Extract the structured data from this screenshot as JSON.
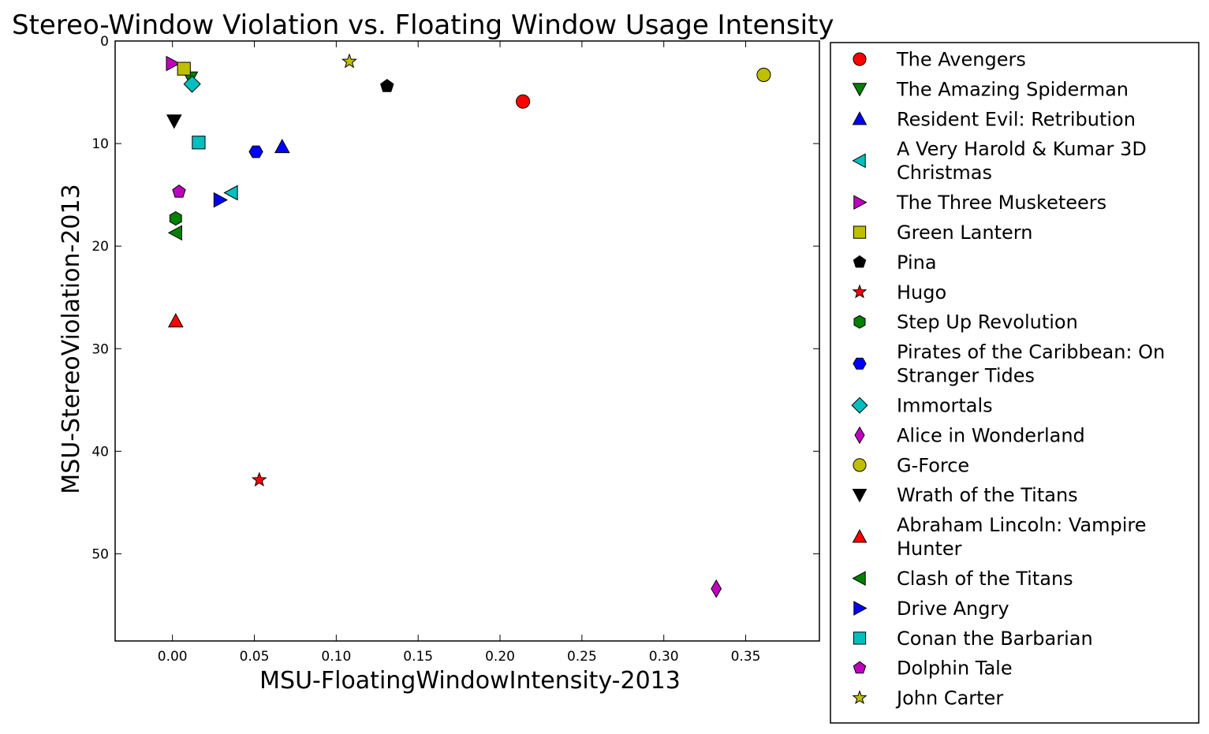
{
  "chart_data": {
    "type": "scatter",
    "title": "Stereo-Window Violation vs. Floating Window Usage Intensity",
    "xlabel": "MSU-FloatingWindowIntensity-2013",
    "ylabel": "MSU-StereoViolation-2013",
    "xlim": [
      -0.035,
      0.395
    ],
    "ylim": [
      58.5,
      0
    ],
    "y_inverted": true,
    "x_ticks": [
      "0.00",
      "0.05",
      "0.10",
      "0.15",
      "0.20",
      "0.25",
      "0.30",
      "0.35"
    ],
    "x_tick_values": [
      0.0,
      0.05,
      0.1,
      0.15,
      0.2,
      0.25,
      0.3,
      0.35
    ],
    "y_ticks": [
      "0",
      "10",
      "20",
      "30",
      "40",
      "50"
    ],
    "y_tick_values": [
      0,
      10,
      20,
      30,
      40,
      50
    ],
    "grid": false,
    "legend_position": "outside-right",
    "series": [
      {
        "name": "The Avengers",
        "marker": "circle",
        "color": "#ff0000",
        "x": 0.214,
        "y": 5.9
      },
      {
        "name": "The Amazing Spiderman",
        "marker": "triangle-down",
        "color": "#008000",
        "x": 0.011,
        "y": 3.6
      },
      {
        "name": "Resident Evil: Retribution",
        "marker": "triangle-up",
        "color": "#0000ff",
        "x": 0.067,
        "y": 10.3
      },
      {
        "name": "A Very Harold & Kumar 3D Christmas",
        "marker": "triangle-left",
        "color": "#00bfbf",
        "x": 0.036,
        "y": 14.8
      },
      {
        "name": "The Three Musketeers",
        "marker": "triangle-right",
        "color": "#bf00bf",
        "x": 0.0,
        "y": 2.2
      },
      {
        "name": "Green Lantern",
        "marker": "square",
        "color": "#bfbf00",
        "x": 0.007,
        "y": 2.7
      },
      {
        "name": "Pina",
        "marker": "pentagon",
        "color": "#000000",
        "x": 0.131,
        "y": 4.4
      },
      {
        "name": "Hugo",
        "marker": "star",
        "color": "#ff0000",
        "x": 0.053,
        "y": 42.8
      },
      {
        "name": "Step Up Revolution",
        "marker": "hexagon",
        "color": "#008000",
        "x": 0.002,
        "y": 17.3
      },
      {
        "name": "Pirates of the Caribbean: On Stranger Tides",
        "marker": "hexagon2",
        "color": "#0000ff",
        "x": 0.051,
        "y": 10.8
      },
      {
        "name": "Immortals",
        "marker": "diamond",
        "color": "#00bfbf",
        "x": 0.012,
        "y": 4.2
      },
      {
        "name": "Alice in Wonderland",
        "marker": "thin-diamond",
        "color": "#bf00bf",
        "x": 0.332,
        "y": 53.4
      },
      {
        "name": "G-Force",
        "marker": "circle",
        "color": "#bfbf00",
        "x": 0.361,
        "y": 3.3
      },
      {
        "name": "Wrath of the Titans",
        "marker": "triangle-down",
        "color": "#000000",
        "x": 0.001,
        "y": 7.8
      },
      {
        "name": "Abraham Lincoln: Vampire Hunter",
        "marker": "triangle-up",
        "color": "#ff0000",
        "x": 0.002,
        "y": 27.3
      },
      {
        "name": "Clash of the Titans",
        "marker": "triangle-left",
        "color": "#008000",
        "x": 0.002,
        "y": 18.7
      },
      {
        "name": "Drive Angry",
        "marker": "triangle-right",
        "color": "#0000ff",
        "x": 0.029,
        "y": 15.5
      },
      {
        "name": "Conan the Barbarian",
        "marker": "square",
        "color": "#00bfbf",
        "x": 0.016,
        "y": 9.9
      },
      {
        "name": "Dolphin Tale",
        "marker": "pentagon",
        "color": "#bf00bf",
        "x": 0.004,
        "y": 14.7
      },
      {
        "name": "John Carter",
        "marker": "star",
        "color": "#bfbf00",
        "x": 0.108,
        "y": 2.0
      }
    ]
  }
}
